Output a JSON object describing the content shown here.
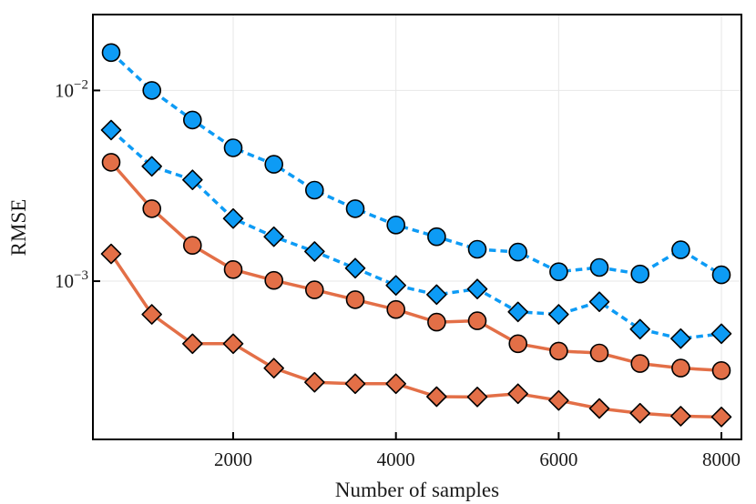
{
  "figure": {
    "background": "#ffffff",
    "frame_color": "#000000",
    "grid_color": "#e7e7e7"
  },
  "chart_data": {
    "type": "line",
    "title": "",
    "xlabel": "Number of samples",
    "ylabel": "RMSE",
    "x_scale": "linear",
    "y_scale": "log",
    "grid": true,
    "legend": "none",
    "xlim": [
      276,
      8246
    ],
    "ylim": [
      0.000148,
      0.025
    ],
    "x_ticks": [
      2000,
      4000,
      6000,
      8000
    ],
    "y_ticks": [
      {
        "value": 0.01,
        "base": "10",
        "exponent": "−2"
      },
      {
        "value": 0.001,
        "base": "10",
        "exponent": "−3"
      }
    ],
    "x": [
      500,
      1000,
      1500,
      2000,
      2500,
      3000,
      3500,
      4000,
      4500,
      5000,
      5500,
      6000,
      6500,
      7000,
      7500,
      8000
    ],
    "series": [
      {
        "name": "blue-dashed-circles",
        "color": "#0d9bf5",
        "line_style": "dashed",
        "marker": "circle",
        "values": [
          0.0158,
          0.01,
          0.007,
          0.005,
          0.0041,
          0.003,
          0.0024,
          0.00197,
          0.00171,
          0.00147,
          0.00142,
          0.00112,
          0.00118,
          0.00109,
          0.00146,
          0.00108
        ]
      },
      {
        "name": "blue-dashed-diamonds",
        "color": "#0d9bf5",
        "line_style": "dashed",
        "marker": "diamond",
        "values": [
          0.0062,
          0.004,
          0.0034,
          0.00213,
          0.00171,
          0.00143,
          0.00117,
          0.00095,
          0.00085,
          0.00091,
          0.00069,
          0.00067,
          0.00078,
          0.00056,
          0.0005,
          0.00053
        ]
      },
      {
        "name": "orange-solid-circles",
        "color": "#e36f47",
        "line_style": "solid",
        "marker": "circle",
        "values": [
          0.0042,
          0.0024,
          0.00154,
          0.00115,
          0.00101,
          0.0009,
          0.0008,
          0.00071,
          0.00061,
          0.00062,
          0.00047,
          0.00043,
          0.00042,
          0.00037,
          0.00035,
          0.00034
        ]
      },
      {
        "name": "orange-solid-diamonds",
        "color": "#e36f47",
        "line_style": "solid",
        "marker": "diamond",
        "values": [
          0.00139,
          0.00067,
          0.00047,
          0.00047,
          0.00035,
          0.000295,
          0.00029,
          0.00029,
          0.000248,
          0.000247,
          0.000257,
          0.000237,
          0.000215,
          0.000203,
          0.000196,
          0.000194
        ]
      }
    ]
  }
}
